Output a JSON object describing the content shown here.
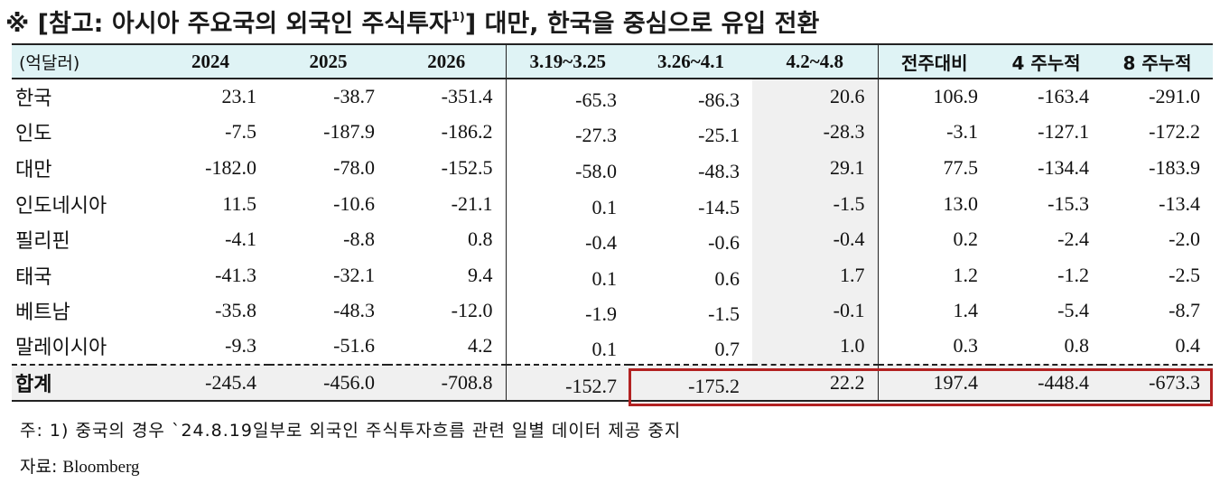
{
  "title": {
    "text": "※ [참고: 아시아 주요국의 외국인 주식투자",
    "sup": "1)",
    "text_after": "] 대만, 한국을 중심으로 유입 전환"
  },
  "table": {
    "unit_label": "(억달러)",
    "columns": [
      "2024",
      "2025",
      "2026",
      "3.19~3.25",
      "3.26~4.1",
      "4.2~4.8",
      "전주대비",
      "4 주누적",
      "8 주누적"
    ],
    "rows": [
      {
        "label": "한국",
        "values": [
          "23.1",
          "-38.7",
          "-351.4",
          "-65.3",
          "-86.3",
          "20.6",
          "106.9",
          "-163.4",
          "-291.0"
        ]
      },
      {
        "label": "인도",
        "values": [
          "-7.5",
          "-187.9",
          "-186.2",
          "-27.3",
          "-25.1",
          "-28.3",
          "-3.1",
          "-127.1",
          "-172.2"
        ]
      },
      {
        "label": "대만",
        "values": [
          "-182.0",
          "-78.0",
          "-152.5",
          "-58.0",
          "-48.3",
          "29.1",
          "77.5",
          "-134.4",
          "-183.9"
        ]
      },
      {
        "label": "인도네시아",
        "values": [
          "11.5",
          "-10.6",
          "-21.1",
          "0.1",
          "-14.5",
          "-1.5",
          "13.0",
          "-15.3",
          "-13.4"
        ]
      },
      {
        "label": "필리핀",
        "values": [
          "-4.1",
          "-8.8",
          "0.8",
          "-0.4",
          "-0.6",
          "-0.4",
          "0.2",
          "-2.4",
          "-2.0"
        ]
      },
      {
        "label": "태국",
        "values": [
          "-41.3",
          "-32.1",
          "9.4",
          "0.1",
          "0.6",
          "1.7",
          "1.2",
          "-1.2",
          "-2.5"
        ]
      },
      {
        "label": "베트남",
        "values": [
          "-35.8",
          "-48.3",
          "-12.0",
          "-1.9",
          "-1.5",
          "-0.1",
          "1.4",
          "-5.4",
          "-8.7"
        ]
      },
      {
        "label": "말레이시아",
        "values": [
          "-9.3",
          "-51.6",
          "4.2",
          "0.1",
          "0.7",
          "1.0",
          "0.3",
          "0.8",
          "0.4"
        ]
      }
    ],
    "total": {
      "label": "합계",
      "values": [
        "-245.4",
        "-456.0",
        "-708.8",
        "-152.7",
        "-175.2",
        "22.2",
        "197.4",
        "-448.4",
        "-673.3"
      ]
    }
  },
  "footnote": "주: 1) 중국의 경우 `24.8.19일부로 외국인 주식투자흐름 관련 일별 데이터 제공 중지",
  "source": {
    "prefix": "자료: ",
    "name": "Bloomberg"
  },
  "colors": {
    "header_bg": "#dff3f5",
    "shade": "#f0f0f0",
    "highlight_border": "#b22222"
  }
}
